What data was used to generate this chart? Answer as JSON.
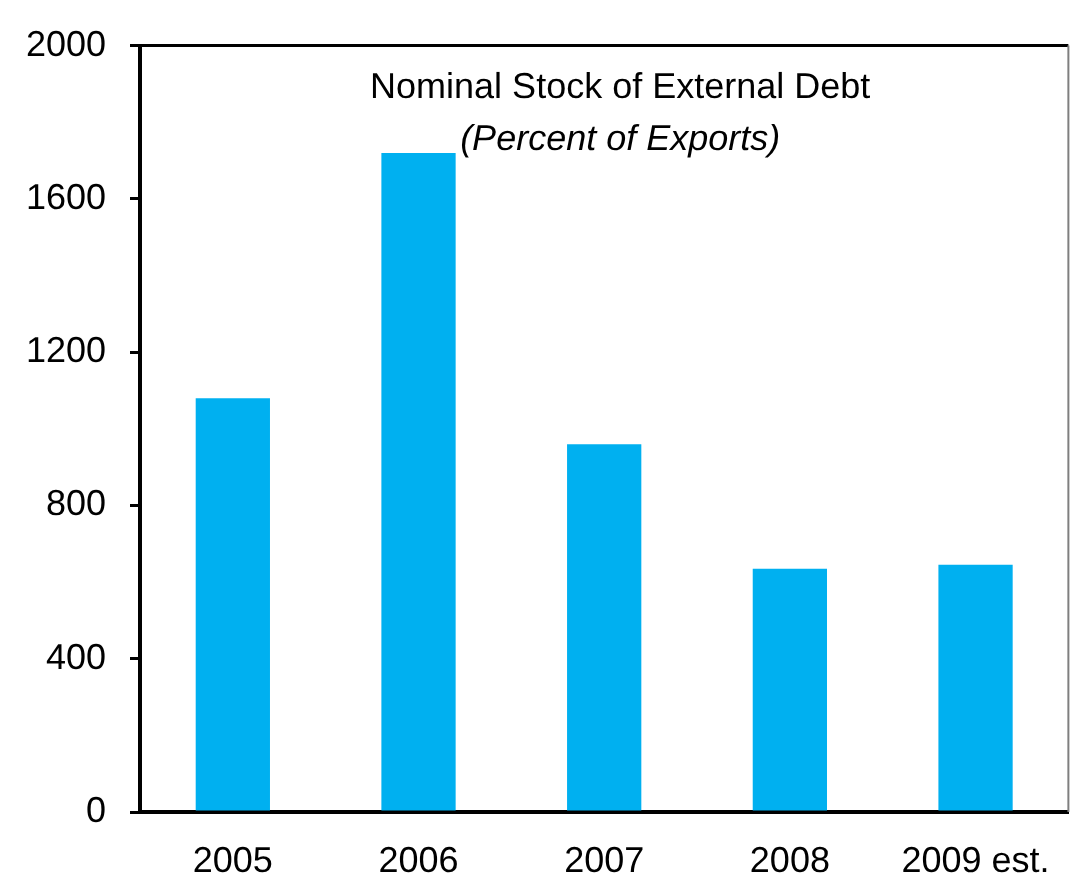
{
  "chart_data": {
    "type": "bar",
    "title": "Nominal Stock of External Debt",
    "subtitle": "(Percent of Exports)",
    "categories": [
      "2005",
      "2006",
      "2007",
      "2008",
      "2009 est."
    ],
    "values": [
      1080,
      1720,
      960,
      635,
      645
    ],
    "color": "#00b0f0",
    "ylim": [
      0,
      2000
    ],
    "yticks": [
      0,
      400,
      800,
      1200,
      1600,
      2000
    ]
  }
}
